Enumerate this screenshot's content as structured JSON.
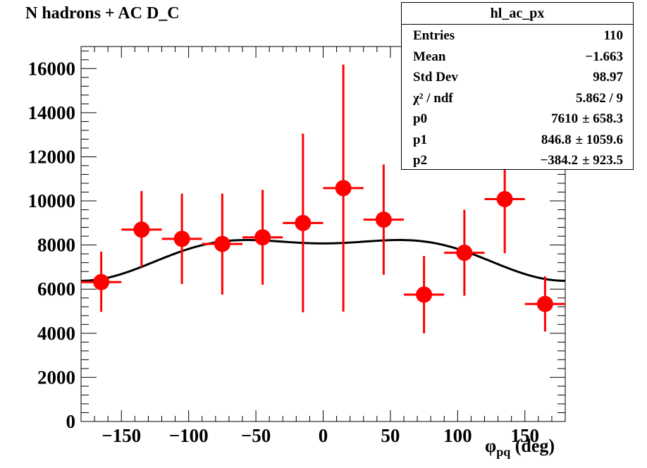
{
  "chart_data": {
    "type": "scatter",
    "title": "N hadrons + AC D_C",
    "xlabel": {
      "symbol": "φ",
      "subscript": "pq",
      "unit": "(deg)"
    },
    "ylabel": "",
    "xlim": [
      -180,
      180
    ],
    "ylim": [
      0,
      17000
    ],
    "x_ticks": [
      -150,
      -100,
      -50,
      0,
      50,
      100,
      150
    ],
    "y_ticks": [
      0,
      2000,
      4000,
      6000,
      8000,
      10000,
      12000,
      14000,
      16000
    ],
    "points": [
      {
        "x": -165,
        "y": 6320,
        "xerr": 15,
        "yerr_low": 1350,
        "yerr_high": 1380
      },
      {
        "x": -135,
        "y": 8700,
        "xerr": 15,
        "yerr_low": 1700,
        "yerr_high": 1750
      },
      {
        "x": -105,
        "y": 8280,
        "xerr": 15,
        "yerr_low": 2050,
        "yerr_high": 2050
      },
      {
        "x": -75,
        "y": 8050,
        "xerr": 15,
        "yerr_low": 2300,
        "yerr_high": 2280
      },
      {
        "x": -45,
        "y": 8350,
        "xerr": 15,
        "yerr_low": 2150,
        "yerr_high": 2150
      },
      {
        "x": -15,
        "y": 9000,
        "xerr": 15,
        "yerr_low": 4050,
        "yerr_high": 4050
      },
      {
        "x": 15,
        "y": 10580,
        "xerr": 15,
        "yerr_low": 5600,
        "yerr_high": 5600
      },
      {
        "x": 45,
        "y": 9150,
        "xerr": 15,
        "yerr_low": 2500,
        "yerr_high": 2500
      },
      {
        "x": 75,
        "y": 5750,
        "xerr": 15,
        "yerr_low": 1750,
        "yerr_high": 1750
      },
      {
        "x": 105,
        "y": 7650,
        "xerr": 15,
        "yerr_low": 1950,
        "yerr_high": 1950
      },
      {
        "x": 135,
        "y": 10080,
        "xerr": 15,
        "yerr_low": 2450,
        "yerr_high": 2450
      },
      {
        "x": 165,
        "y": 5330,
        "xerr": 15,
        "yerr_low": 1250,
        "yerr_high": 1250
      }
    ],
    "fit": {
      "function": "p0 + p1*cos(phi) + p2*cos(2*phi)",
      "p0": 7610,
      "p1": 846.8,
      "p2": -384.2
    },
    "marker_color": "#ff0000",
    "fit_color": "#000000",
    "legend": "top-right"
  },
  "statbox": {
    "name": "hl_ac_px",
    "rows": [
      {
        "label": "Entries",
        "value": "110",
        "error": ""
      },
      {
        "label": "Mean",
        "value": "−1.663",
        "error": ""
      },
      {
        "label": "Std Dev",
        "value": "98.97",
        "error": ""
      },
      {
        "label": "χ² / ndf",
        "value": "5.862 / 9",
        "error": ""
      },
      {
        "label": "p0",
        "value": "7610",
        "error": "± 658.3"
      },
      {
        "label": "p1",
        "value": "846.8",
        "error": "± 1059.6"
      },
      {
        "label": "p2",
        "value": "−384.2",
        "error": "± 923.5"
      }
    ]
  }
}
